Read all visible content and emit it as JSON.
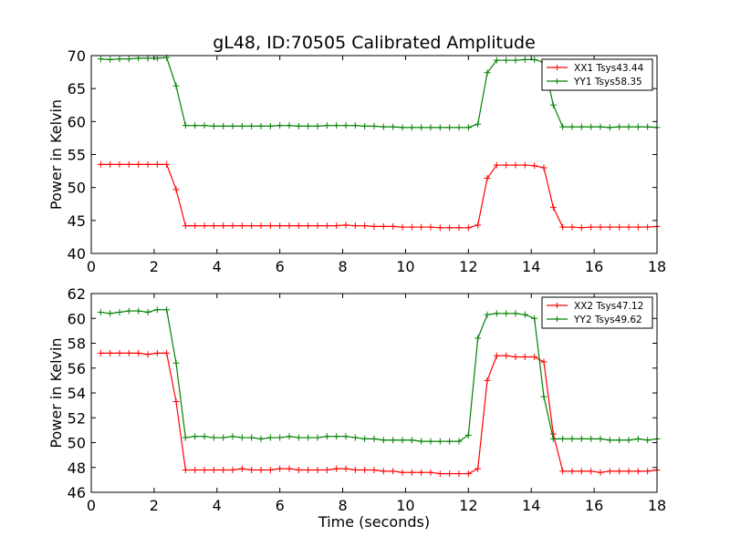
{
  "chart_data": {
    "type": "line",
    "title": "gL48, ID:70505 Calibrated Amplitude",
    "x": [
      0.3,
      0.6,
      0.9,
      1.2,
      1.5,
      1.8,
      2.1,
      2.4,
      2.7,
      3.0,
      3.3,
      3.6,
      3.9,
      4.2,
      4.5,
      4.8,
      5.1,
      5.4,
      5.7,
      6.0,
      6.3,
      6.6,
      6.9,
      7.2,
      7.5,
      7.8,
      8.1,
      8.4,
      8.7,
      9.0,
      9.3,
      9.6,
      9.9,
      10.2,
      10.5,
      10.8,
      11.1,
      11.4,
      11.7,
      12.0,
      12.3,
      12.6,
      12.9,
      13.2,
      13.5,
      13.8,
      14.1,
      14.4,
      14.7,
      15.0,
      15.3,
      15.6,
      15.9,
      16.2,
      16.5,
      16.8,
      17.1,
      17.4,
      17.7,
      18.0
    ],
    "panels": [
      {
        "ylabel": "Power in Kelvin",
        "xlabel": "",
        "xlim": [
          0,
          18
        ],
        "ylim": [
          40,
          70
        ],
        "xticks": [
          "0",
          "2",
          "4",
          "6",
          "8",
          "10",
          "12",
          "14",
          "16",
          "18"
        ],
        "yticks": [
          "40",
          "45",
          "50",
          "55",
          "60",
          "65",
          "70"
        ],
        "legend_position": "top-right",
        "series": [
          {
            "name": "XX1 Tsys43.44",
            "color": "#ff0000",
            "values": [
              53.5,
              53.5,
              53.5,
              53.5,
              53.5,
              53.5,
              53.5,
              53.5,
              49.7,
              44.2,
              44.2,
              44.2,
              44.2,
              44.2,
              44.2,
              44.2,
              44.2,
              44.2,
              44.2,
              44.2,
              44.2,
              44.2,
              44.2,
              44.2,
              44.2,
              44.2,
              44.3,
              44.2,
              44.2,
              44.1,
              44.1,
              44.1,
              44.0,
              44.0,
              44.0,
              44.0,
              43.9,
              43.9,
              43.9,
              43.9,
              44.3,
              51.4,
              53.4,
              53.4,
              53.4,
              53.4,
              53.3,
              53.0,
              47.0,
              44.0,
              44.0,
              43.9,
              44.0,
              44.0,
              44.0,
              44.0,
              44.0,
              44.0,
              44.0,
              44.1
            ]
          },
          {
            "name": "YY1 Tsys58.35",
            "color": "#008000",
            "values": [
              69.5,
              69.4,
              69.5,
              69.5,
              69.6,
              69.6,
              69.6,
              69.7,
              65.4,
              59.4,
              59.4,
              59.4,
              59.3,
              59.3,
              59.3,
              59.3,
              59.3,
              59.3,
              59.3,
              59.4,
              59.4,
              59.3,
              59.3,
              59.3,
              59.4,
              59.4,
              59.4,
              59.4,
              59.3,
              59.3,
              59.2,
              59.2,
              59.1,
              59.1,
              59.1,
              59.1,
              59.1,
              59.1,
              59.1,
              59.1,
              59.6,
              67.4,
              69.3,
              69.3,
              69.3,
              69.4,
              69.4,
              69.0,
              62.5,
              59.2,
              59.2,
              59.2,
              59.2,
              59.2,
              59.1,
              59.2,
              59.2,
              59.2,
              59.2,
              59.1
            ]
          }
        ]
      },
      {
        "ylabel": "Power in Kelvin",
        "xlabel": "Time (seconds)",
        "xlim": [
          0,
          18
        ],
        "ylim": [
          46,
          62
        ],
        "xticks": [
          "0",
          "2",
          "4",
          "6",
          "8",
          "10",
          "12",
          "14",
          "16",
          "18"
        ],
        "yticks": [
          "46",
          "48",
          "50",
          "52",
          "54",
          "56",
          "58",
          "60",
          "62"
        ],
        "legend_position": "top-right",
        "series": [
          {
            "name": "XX2 Tsys47.12",
            "color": "#ff0000",
            "values": [
              57.2,
              57.2,
              57.2,
              57.2,
              57.2,
              57.1,
              57.2,
              57.2,
              53.3,
              47.8,
              47.8,
              47.8,
              47.8,
              47.8,
              47.8,
              47.9,
              47.8,
              47.8,
              47.8,
              47.9,
              47.9,
              47.8,
              47.8,
              47.8,
              47.8,
              47.9,
              47.9,
              47.8,
              47.8,
              47.8,
              47.7,
              47.7,
              47.6,
              47.6,
              47.6,
              47.6,
              47.5,
              47.5,
              47.5,
              47.5,
              47.9,
              55.0,
              57.0,
              57.0,
              56.9,
              56.9,
              56.9,
              56.5,
              50.7,
              47.7,
              47.7,
              47.7,
              47.7,
              47.6,
              47.7,
              47.7,
              47.7,
              47.7,
              47.7,
              47.8
            ]
          },
          {
            "name": "YY2 Tsys49.62",
            "color": "#008000",
            "values": [
              60.5,
              60.4,
              60.5,
              60.6,
              60.6,
              60.5,
              60.7,
              60.7,
              56.4,
              50.4,
              50.5,
              50.5,
              50.4,
              50.4,
              50.5,
              50.4,
              50.4,
              50.3,
              50.4,
              50.4,
              50.5,
              50.4,
              50.4,
              50.4,
              50.5,
              50.5,
              50.5,
              50.4,
              50.3,
              50.3,
              50.2,
              50.2,
              50.2,
              50.2,
              50.1,
              50.1,
              50.1,
              50.1,
              50.1,
              50.6,
              58.4,
              60.3,
              60.4,
              60.4,
              60.4,
              60.3,
              60.0,
              53.7,
              50.3,
              50.3,
              50.3,
              50.3,
              50.3,
              50.3,
              50.2,
              50.2,
              50.2,
              50.3,
              50.2,
              50.3
            ]
          }
        ]
      }
    ]
  }
}
